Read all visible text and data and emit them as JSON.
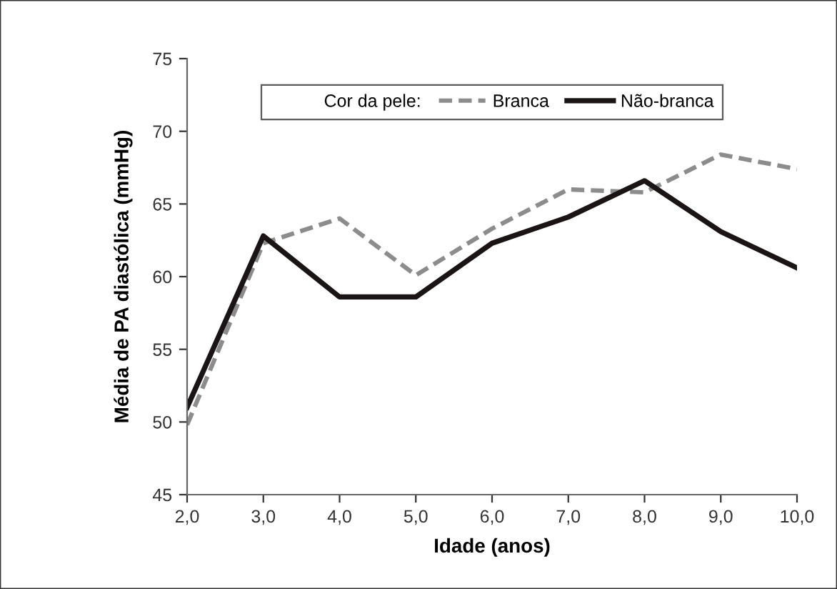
{
  "chart_data": {
    "type": "line",
    "xlabel": "Idade (anos)",
    "ylabel": "Média de PA diastólica (mmHg)",
    "legend_title": "Cor da pele:",
    "categories": [
      "2,0",
      "3,0",
      "4,0",
      "5,0",
      "6,0",
      "7,0",
      "8,0",
      "9,0",
      "10,0"
    ],
    "series": [
      {
        "name": "Branca",
        "color": "#8c8c8c",
        "line_style": "dashed",
        "values": [
          49.8,
          62.3,
          64.0,
          60.1,
          63.3,
          66.0,
          65.8,
          68.4,
          67.4
        ]
      },
      {
        "name": "Não-branca",
        "color": "#1a1414",
        "line_style": "solid",
        "values": [
          51.0,
          62.8,
          58.6,
          58.6,
          62.3,
          64.1,
          66.6,
          63.1,
          60.6
        ]
      }
    ],
    "ylim": [
      45,
      75
    ],
    "yticks": [
      45,
      50,
      55,
      60,
      65,
      70,
      75
    ],
    "grid": false,
    "legend": "top",
    "marker": "none"
  }
}
